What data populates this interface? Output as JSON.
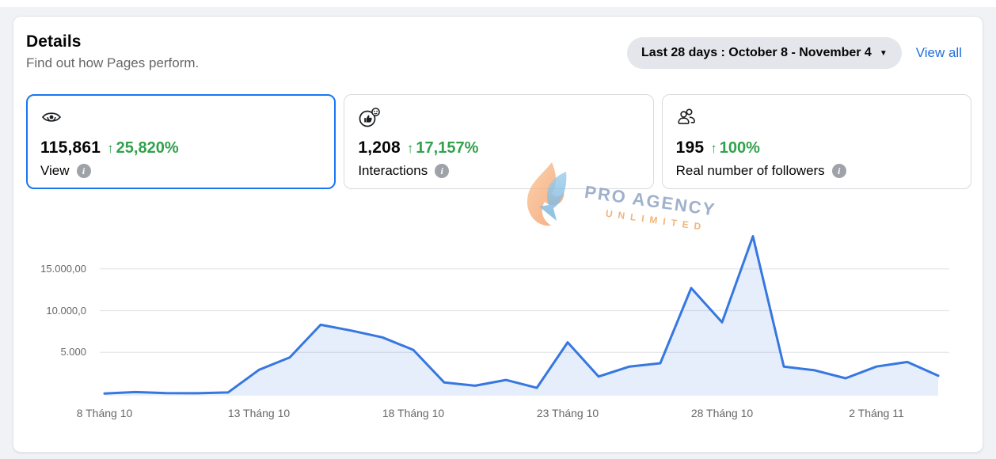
{
  "colors": {
    "accent_blue": "#1877F2",
    "link_blue": "#216FDB",
    "green": "#31A24C",
    "page_bg": "#f0f2f5"
  },
  "glyphs": {
    "up_arrow": "↑",
    "caret_down": "▼",
    "info_i": "i"
  },
  "header": {
    "title": "Details",
    "subtitle": "Find out how Pages perform.",
    "date_filter": "Last 28 days : October 8 - November 4",
    "view_all": "View all"
  },
  "metric_cards": [
    {
      "id": "views",
      "icon": "eye-icon",
      "value": "115,861",
      "delta": "25,820%",
      "label": "View",
      "selected": true
    },
    {
      "id": "interactions",
      "icon": "reaction-icon",
      "value": "1,208",
      "delta": "17,157%",
      "label": "Interactions",
      "selected": false
    },
    {
      "id": "followers",
      "icon": "followers-icon",
      "value": "195",
      "delta": "100%",
      "label": "Real number of followers",
      "selected": false
    }
  ],
  "watermark": {
    "brand": "PRO AGENCY",
    "tagline": "UNLIMITED"
  },
  "chart_data": {
    "type": "area",
    "title": "",
    "xlabel": "",
    "ylabel": "",
    "x_range": {
      "start_label": "October 8",
      "end_label": "November 4",
      "num_points": 28
    },
    "x_tick_labels": [
      {
        "label": "8 Tháng 10",
        "day": 0
      },
      {
        "label": "13 Tháng 10",
        "day": 5
      },
      {
        "label": "18 Tháng 10",
        "day": 10
      },
      {
        "label": "23 Tháng 10",
        "day": 15
      },
      {
        "label": "28 Tháng 10",
        "day": 20
      },
      {
        "label": "2 Tháng 11",
        "day": 25
      }
    ],
    "y_tick_labels": [
      {
        "label": "5.000",
        "value": 5000
      },
      {
        "label": "10.000,0",
        "value": 10000
      },
      {
        "label": "15.000,00",
        "value": 15000
      }
    ],
    "ylim": [
      0,
      20000
    ],
    "grid": "horizontal",
    "legend": "none",
    "series": [
      {
        "name": "View",
        "values": [
          80,
          250,
          120,
          100,
          200,
          2900,
          4400,
          8300,
          7600,
          6800,
          5300,
          1400,
          1000,
          1700,
          750,
          6200,
          2100,
          3300,
          3700,
          12700,
          8600,
          18900,
          3300,
          2850,
          1900,
          3300,
          3850,
          2200
        ]
      }
    ],
    "line_color": "#3677E0",
    "fill_color": "rgba(54,119,224,0.12)",
    "grid_color": "#e4e6e9"
  }
}
